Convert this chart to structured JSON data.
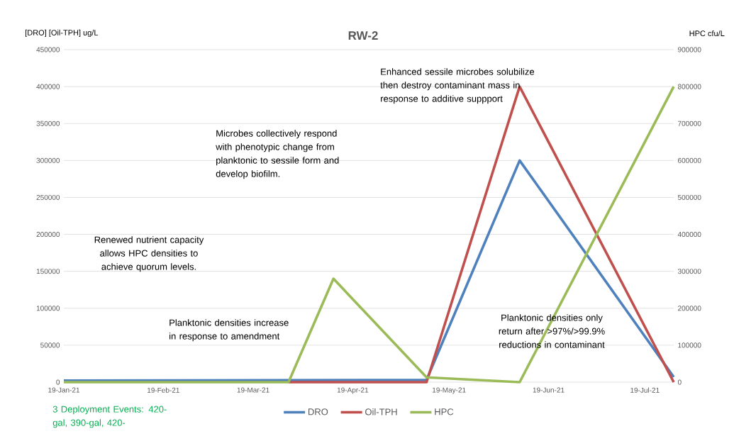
{
  "chart_data": {
    "type": "line",
    "title": "RW-2",
    "ylabel": "[DRO] [Oil-TPH] ug/L",
    "y2label": "HPC cfu/L",
    "series": [
      {
        "name": "DRO",
        "color": "#4f81bd",
        "x": [
          "2021-01-19",
          "2021-05-12",
          "2021-06-10",
          "2021-07-28"
        ],
        "values": [
          2000,
          3000,
          300000,
          7000
        ]
      },
      {
        "name": "Oil-TPH",
        "color": "#c0504d",
        "x": [
          "2021-03-30",
          "2021-05-12",
          "2021-06-10",
          "2021-07-28"
        ],
        "values": [
          0,
          0,
          400000,
          0
        ]
      },
      {
        "name": "HPC",
        "color": "#9bbb59",
        "axis": "y2",
        "x": [
          "2021-01-19",
          "2021-03-30",
          "2021-04-13",
          "2021-05-12",
          "2021-06-10",
          "2021-07-28"
        ],
        "values": [
          0,
          0,
          280000,
          13000,
          0,
          800000
        ]
      }
    ],
    "xlim": [
      "2021-01-19",
      "2021-07-28"
    ],
    "xticks": [
      {
        "value": "2021-01-19",
        "label": "19-Jan-21"
      },
      {
        "value": "2021-02-19",
        "label": "19-Feb-21"
      },
      {
        "value": "2021-03-19",
        "label": "19-Mar-21"
      },
      {
        "value": "2021-04-19",
        "label": "19-Apr-21"
      },
      {
        "value": "2021-05-19",
        "label": "19-May-21"
      },
      {
        "value": "2021-06-19",
        "label": "19-Jun-21"
      },
      {
        "value": "2021-07-19",
        "label": "19-Jul-21"
      }
    ],
    "ylim": [
      0,
      450000
    ],
    "yticks": [
      0,
      50000,
      100000,
      150000,
      200000,
      250000,
      300000,
      350000,
      400000,
      450000
    ],
    "y2lim": [
      0,
      900000
    ],
    "y2ticks": [
      0,
      100000,
      200000,
      300000,
      400000,
      500000,
      600000,
      700000,
      800000,
      900000
    ],
    "grid": "y",
    "legend": "bottom",
    "annotations": [
      "Renewed nutrient capacity allows HPC densities to achieve quorum levels.",
      "Microbes collectively respond with phenotypic change from planktonic to sessile form and develop biofilm.",
      "Enhanced sessile microbes solubilize then destroy contaminant mass in response to additive suppport",
      "Planktonic densities increase in response to amendment",
      "Planktonic densities only return after >97%/>99.9% reductions in contaminant",
      "3 Deployment Events: 420-gal, 390-gal, 420-"
    ]
  }
}
